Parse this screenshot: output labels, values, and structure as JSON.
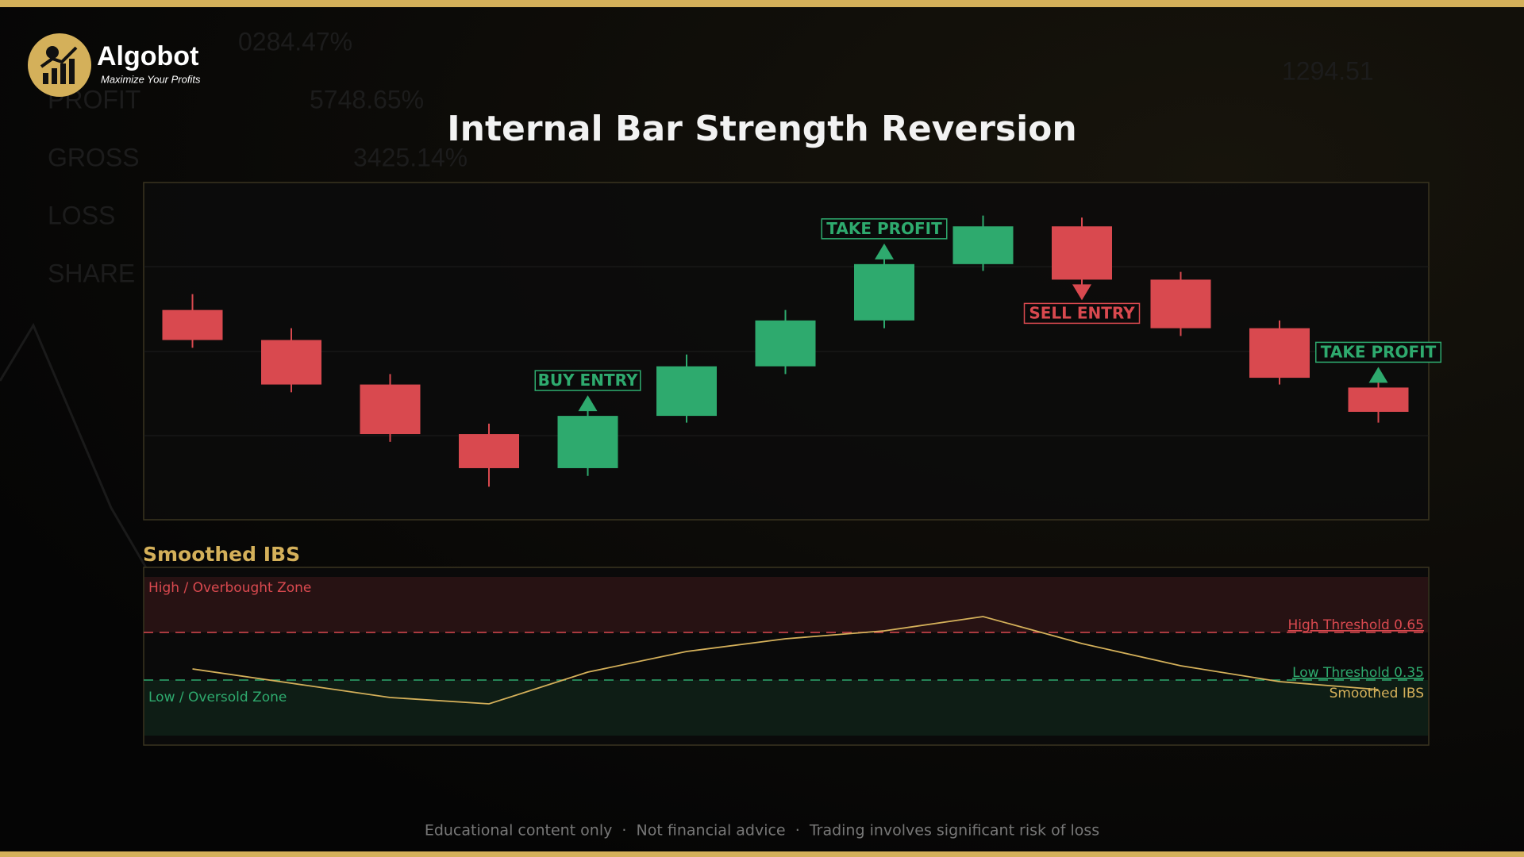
{
  "brand": {
    "name": "Algobot",
    "tagline": "Maximize Your Profits"
  },
  "background_texts": [
    "0284.47%",
    "PROFIT",
    "5748.65%",
    "GROSS",
    "3425.14%",
    "LOSS",
    "SHARE",
    "1294.51"
  ],
  "chart_data": [
    {
      "type": "candlestick",
      "title": "Internal Bar Strength Reversion",
      "ylim": [
        0,
        100
      ],
      "up_color": "#2eaa6e",
      "down_color": "#d9494f",
      "open": [
        62.2,
        53.3,
        40.1,
        25.4,
        15.3,
        30.8,
        45.5,
        59.1,
        75.8,
        87.0,
        71.2,
        56.8,
        39.2
      ],
      "high": [
        66.9,
        56.8,
        43.2,
        28.5,
        33.1,
        49.0,
        62.2,
        78.1,
        90.2,
        89.6,
        73.5,
        59.1,
        45.0
      ],
      "low": [
        51.0,
        37.8,
        23.1,
        9.8,
        13.0,
        28.8,
        43.2,
        56.8,
        73.8,
        68.9,
        54.5,
        40.1,
        28.8
      ],
      "close": [
        53.3,
        40.1,
        25.4,
        15.3,
        30.8,
        45.5,
        59.1,
        75.8,
        87.0,
        71.2,
        56.8,
        42.1,
        32.0
      ],
      "annotations": [
        {
          "index": 4,
          "label": "BUY ENTRY",
          "color": "#2eaa6e",
          "position": "above"
        },
        {
          "index": 7,
          "label": "TAKE PROFIT",
          "color": "#2eaa6e",
          "position": "above"
        },
        {
          "index": 9,
          "label": "SELL ENTRY",
          "color": "#d9494f",
          "position": "below"
        },
        {
          "index": 12,
          "label": "TAKE PROFIT",
          "color": "#2eaa6e",
          "position": "above"
        }
      ]
    },
    {
      "type": "line",
      "title": "Smoothed IBS",
      "ylim": [
        0,
        1
      ],
      "series": [
        {
          "name": "Smoothed IBS",
          "color": "#d4b05a",
          "values": [
            0.42,
            0.33,
            0.24,
            0.2,
            0.4,
            0.53,
            0.61,
            0.66,
            0.75,
            0.58,
            0.44,
            0.34,
            0.29
          ]
        }
      ],
      "thresholds": [
        {
          "value": 0.65,
          "label": "High Threshold 0.65",
          "color": "#d9494f"
        },
        {
          "value": 0.35,
          "label": "Low Threshold 0.35",
          "color": "#2eaa6e"
        }
      ],
      "zones": [
        "High / Overbought Zone",
        "Low / Oversold Zone"
      ]
    }
  ],
  "footer": "Educational content only  ·  Not financial advice  ·  Trading involves significant risk of loss"
}
